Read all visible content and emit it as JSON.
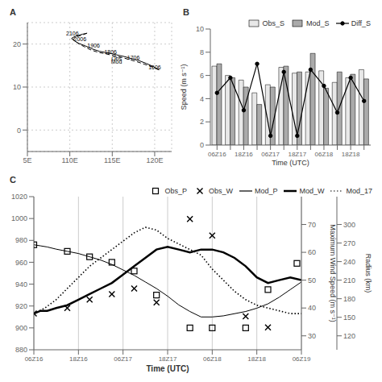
{
  "chart_data": [
    {
      "type": "map",
      "title": "A",
      "xlim": [
        105,
        122
      ],
      "xticks": [
        {
          "value": 105,
          "label": "5E"
        },
        {
          "value": 110,
          "label": "110E"
        },
        {
          "value": 115,
          "label": "115E"
        },
        {
          "value": 120,
          "label": "120E"
        }
      ],
      "ylim": [
        -5,
        25
      ],
      "yticks": [
        0,
        10,
        20
      ],
      "grid": true,
      "series": [
        {
          "color": "#000000",
          "line_style": "solid",
          "x": [
            120.5,
            119.8,
            119.0,
            118.2,
            117.3,
            116.4,
            115.5,
            114.6,
            113.5,
            112.6,
            111.8,
            111.0,
            110.5,
            110.2,
            110.5,
            111.0,
            111.5,
            112.0
          ],
          "values": [
            14.0,
            14.8,
            15.5,
            16.1,
            16.6,
            17.1,
            17.5,
            17.9,
            18.3,
            18.9,
            19.6,
            20.2,
            20.8,
            21.3,
            21.7,
            22.0,
            22.3,
            22.5
          ]
        },
        {
          "color": "#000000",
          "line_style": "dashed",
          "x": [
            120.5,
            119.7,
            118.8,
            117.9,
            117.0,
            116.1,
            115.2,
            114.3,
            113.3,
            112.4,
            111.7,
            111.1,
            110.7,
            110.4,
            110.6,
            111.1,
            111.6,
            112.1
          ],
          "values": [
            14.0,
            14.7,
            15.3,
            15.9,
            16.4,
            16.9,
            17.3,
            17.7,
            18.1,
            18.7,
            19.4,
            20.0,
            20.6,
            21.1,
            21.5,
            21.9,
            22.2,
            22.6
          ]
        }
      ],
      "annotations": [
        {
          "text": "1606",
          "x": 120.0,
          "y": 14.2
        },
        {
          "text": "1706",
          "x": 117.5,
          "y": 16.4
        },
        {
          "text": "1806",
          "x": 114.8,
          "y": 17.7
        },
        {
          "text": "1906",
          "x": 112.8,
          "y": 19.2
        },
        {
          "text": "2006",
          "x": 111.2,
          "y": 20.6
        },
        {
          "text": "2106",
          "x": 110.3,
          "y": 22.0
        },
        {
          "text": "Obs",
          "x": 115.5,
          "y": 16.2
        },
        {
          "text": "Mod",
          "x": 115.5,
          "y": 15.4
        }
      ]
    },
    {
      "type": "bar",
      "title": "B",
      "x_label": "Time (UTC)",
      "y_label": "Speed (m s⁻¹)",
      "categories": [
        "06Z16",
        null,
        "18Z16",
        null,
        "06Z17",
        null,
        "18Z17",
        null,
        "06Z18",
        null,
        "18Z18",
        null
      ],
      "ylim": [
        0,
        10
      ],
      "yticks": [
        0,
        2,
        4,
        6,
        8,
        10
      ],
      "legend": "upper right",
      "series": [
        {
          "name": "Obs_S",
          "type": "bar",
          "color": "#e8e8e8",
          "values": [
            6.8,
            6.0,
            5.6,
            4.5,
            5.2,
            6.7,
            6.2,
            6.3,
            6.4,
            5.4,
            5.8,
            6.5
          ]
        },
        {
          "name": "Mod_S",
          "type": "bar",
          "color": "#aaaaaa",
          "values": [
            7.0,
            5.8,
            5.0,
            3.5,
            5.0,
            6.8,
            6.3,
            7.9,
            4.9,
            6.3,
            6.1,
            5.7
          ]
        },
        {
          "name": "Diff_S",
          "type": "line",
          "color": "#000000",
          "marker": "circle",
          "line_style": "solid",
          "values": [
            4.5,
            5.8,
            3.0,
            7.0,
            0.8,
            6.3,
            0.8,
            6.5,
            5.1,
            2.8,
            5.8,
            3.8
          ]
        }
      ]
    },
    {
      "type": "line",
      "title": "C",
      "x_label": "Time (UTC)",
      "y2_label": "Maximum Wind Speed (m s⁻¹)",
      "y3_label": "Radius (km)",
      "xlim": [
        0,
        12
      ],
      "xticks": [
        {
          "value": 0,
          "label": "06Z16"
        },
        {
          "value": 2,
          "label": "18Z16"
        },
        {
          "value": 4,
          "label": "06Z17"
        },
        {
          "value": 6,
          "label": "18Z17"
        },
        {
          "value": 8,
          "label": "06Z18"
        },
        {
          "value": 10,
          "label": "18Z18"
        },
        {
          "value": 12,
          "label": "06Z19"
        }
      ],
      "ylim": [
        880,
        1020
      ],
      "yticks": [
        880,
        900,
        920,
        940,
        960,
        980,
        1000,
        1020
      ],
      "y2lim": [
        25,
        80
      ],
      "y2ticks": [
        30,
        40,
        50,
        60,
        70
      ],
      "y3lim": [
        25,
        80
      ],
      "y3ticks": [
        {
          "value": 30,
          "label": "120"
        },
        {
          "value": 36.666666666666664,
          "label": "150"
        },
        {
          "value": 43.33333333333333,
          "label": "180"
        },
        {
          "value": 50,
          "label": "210"
        },
        {
          "value": 56.666666666666664,
          "label": "240"
        },
        {
          "value": 63.33333333333333,
          "label": "270"
        },
        {
          "value": 70,
          "label": "300"
        }
      ],
      "grid": "x",
      "legend": "upper right",
      "series": [
        {
          "name": "Obs_P",
          "type": "scatter",
          "marker": "square",
          "color": "#000000",
          "axis": "y",
          "x": [
            0.0,
            1.5,
            2.5,
            3.5,
            4.5,
            5.5,
            7.0,
            8.0,
            9.5,
            10.5,
            11.8
          ],
          "values": [
            976,
            970,
            965,
            960,
            952,
            930,
            900,
            900,
            900,
            935,
            959
          ]
        },
        {
          "name": "Obs_W",
          "type": "scatter",
          "marker": "x",
          "color": "#000000",
          "axis": "y2",
          "x": [
            0.0,
            1.5,
            2.5,
            3.5,
            4.5,
            5.5,
            7.0,
            8.0,
            9.5,
            10.5
          ],
          "values": [
            38,
            40,
            43,
            45,
            47,
            42,
            72,
            66,
            37,
            33
          ]
        },
        {
          "name": "Mod_P",
          "type": "line",
          "line_style": "solid",
          "color": "#000000",
          "axis": "y",
          "x": [
            0.0,
            0.3,
            0.6,
            1.0,
            1.5,
            2.0,
            2.5,
            3.0,
            3.5,
            4.0,
            4.5,
            5.0,
            5.5,
            6.0,
            6.5,
            7.0,
            7.5,
            8.0,
            8.5,
            9.0,
            9.5,
            10.0,
            10.5,
            11.0,
            11.5,
            12.0
          ],
          "values": [
            976,
            975,
            974,
            972,
            970,
            968,
            965,
            962,
            958,
            953,
            948,
            942,
            936,
            929,
            921,
            915,
            910,
            910,
            911,
            913,
            915,
            918,
            922,
            928,
            935,
            942
          ]
        },
        {
          "name": "Mod_W",
          "type": "line",
          "line_style": "solid",
          "color": "#000000",
          "axis": "y2",
          "x": [
            0.0,
            0.3,
            0.6,
            1.0,
            1.5,
            2.0,
            2.5,
            3.0,
            3.5,
            4.0,
            4.5,
            5.0,
            5.5,
            6.0,
            6.5,
            7.0,
            7.5,
            8.0,
            8.5,
            9.0,
            9.5,
            10.0,
            10.5,
            11.0,
            11.5,
            12.0
          ],
          "values": [
            38,
            39,
            39,
            40,
            41,
            43,
            45,
            47,
            49,
            52,
            55,
            58,
            61,
            62,
            61,
            60,
            61,
            61,
            60,
            58,
            55,
            51,
            49,
            50,
            51,
            50
          ]
        },
        {
          "name": "Mod_17",
          "type": "line",
          "line_style": "dotted",
          "color": "#000000",
          "axis": "y2",
          "x": [
            0.0,
            0.5,
            1.0,
            1.5,
            2.0,
            2.5,
            3.0,
            3.5,
            4.0,
            4.5,
            5.0,
            5.5,
            6.0,
            6.5,
            7.0,
            7.5,
            8.0,
            8.5,
            9.0,
            9.5,
            10.0,
            10.5,
            11.0,
            11.5,
            12.0
          ],
          "values": [
            38,
            40,
            43,
            47,
            51,
            55,
            58,
            61,
            64,
            67,
            69,
            68,
            65,
            63,
            61,
            59,
            54,
            50,
            46,
            43,
            41,
            40,
            39,
            38,
            38
          ]
        }
      ]
    }
  ]
}
